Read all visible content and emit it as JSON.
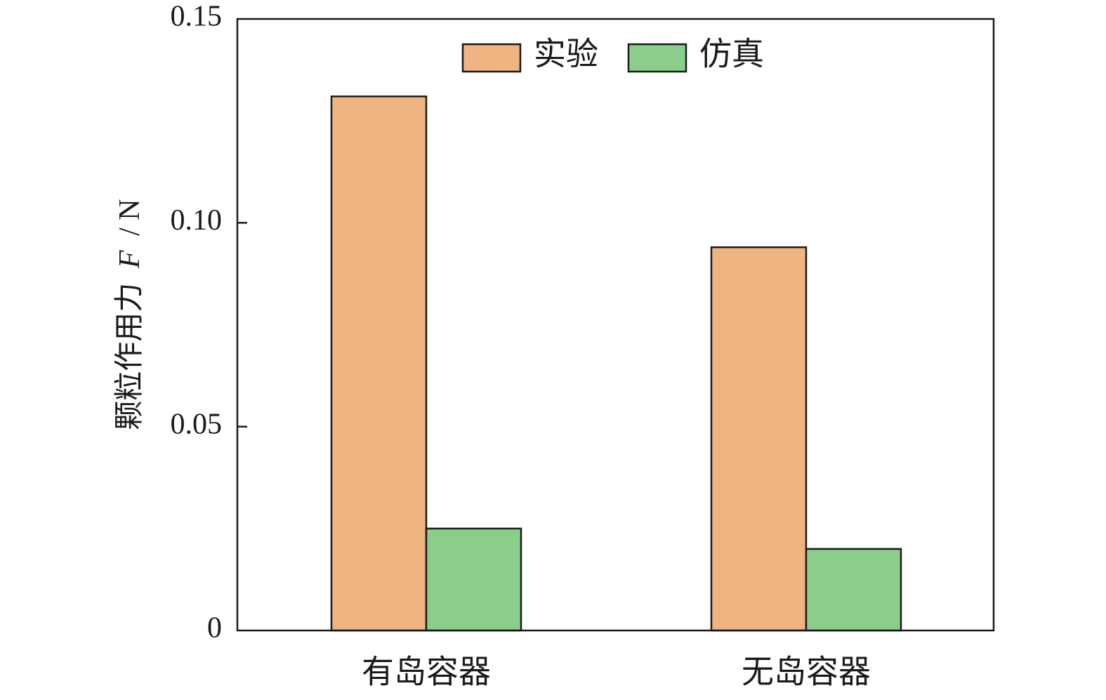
{
  "chart_data": {
    "type": "bar",
    "categories": [
      "有岛容器",
      "无岛容器"
    ],
    "series": [
      {
        "name": "实验",
        "values": [
          0.131,
          0.094
        ],
        "color": "#f0b482"
      },
      {
        "name": "仿真",
        "values": [
          0.025,
          0.02
        ],
        "color": "#8bce8c"
      }
    ],
    "title": "",
    "xlabel": "",
    "ylabel": {
      "prefix": "颗粒作用力",
      "variable": "F",
      "unit": "/ N"
    },
    "ylim": [
      0,
      0.15
    ],
    "yticks": [
      {
        "value": 0,
        "label": "0"
      },
      {
        "value": 0.05,
        "label": "0.05"
      },
      {
        "value": 0.1,
        "label": "0.10"
      },
      {
        "value": 0.15,
        "label": "0.15"
      }
    ],
    "grid": false,
    "legend": {
      "position": "top-center",
      "orientation": "horizontal"
    }
  }
}
